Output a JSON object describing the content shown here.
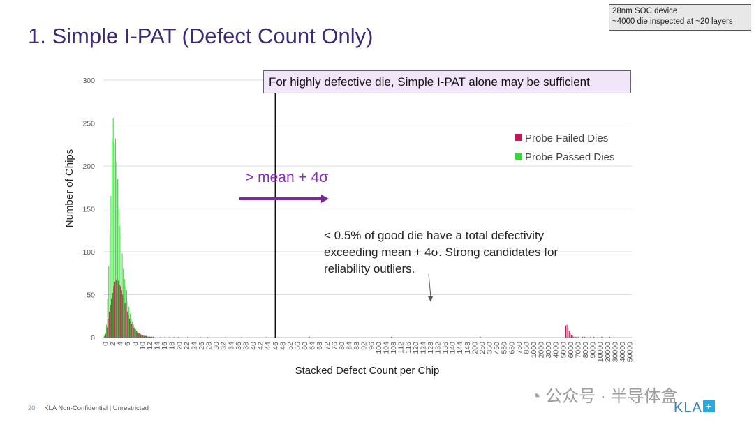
{
  "page": {
    "title": "1. Simple I-PAT (Defect Count Only)",
    "info_lines": [
      "28nm SOC device",
      "~4000 die inspected at ~20 layers"
    ],
    "callout": "For highly defective die, Simple I-PAT alone may be sufficient",
    "sigma_label": "> mean + 4σ",
    "note": "< 0.5% of good die have a total defectivity exceeding mean + 4σ. Strong candidates for reliability outliers.",
    "page_number": "20",
    "footer": "KLA Non-Confidential | Unrestricted",
    "watermark": "公众号 · 半导体盒",
    "logo_text": "KLA",
    "logo_symbol": "+"
  },
  "colors": {
    "title": "#3d2a73",
    "failed": "#c0185a",
    "passed": "#39d33a",
    "arrow": "#7a2a96",
    "grid": "#dcdcdc"
  },
  "chart_data": {
    "type": "bar",
    "xlabel": "Stacked Defect Count per Chip",
    "ylabel": "Number of Chips",
    "ylim": [
      0,
      300
    ],
    "yticks": [
      0,
      50,
      100,
      150,
      200,
      250,
      300
    ],
    "grid": true,
    "legend_position": "right",
    "threshold_label_category": "46",
    "x_tick_labels": [
      "0",
      "2",
      "4",
      "6",
      "8",
      "10",
      "12",
      "14",
      "16",
      "18",
      "20",
      "22",
      "24",
      "26",
      "28",
      "30",
      "32",
      "34",
      "36",
      "38",
      "40",
      "42",
      "44",
      "46",
      "48",
      "52",
      "56",
      "60",
      "64",
      "68",
      "72",
      "76",
      "80",
      "84",
      "88",
      "92",
      "96",
      "100",
      "104",
      "108",
      "112",
      "116",
      "120",
      "124",
      "128",
      "132",
      "136",
      "140",
      "144",
      "148",
      "200",
      "250",
      "350",
      "450",
      "550",
      "650",
      "750",
      "850",
      "1000",
      "2000",
      "3000",
      "4000",
      "5000",
      "6000",
      "7000",
      "8000",
      "9000",
      "10000",
      "20000",
      "30000",
      "40000",
      "50000"
    ],
    "series": [
      {
        "name": "Probe Failed Dies",
        "values": [
          0,
          2,
          4,
          12,
          22,
          30,
          38,
          45,
          52,
          60,
          65,
          67,
          70,
          66,
          62,
          60,
          55,
          50,
          46,
          40,
          36,
          30,
          26,
          22,
          18,
          16,
          13,
          11,
          9,
          8,
          6,
          5,
          5,
          4,
          3,
          3,
          2,
          2,
          2,
          1,
          1,
          1,
          1,
          1,
          1,
          0,
          0,
          0,
          0,
          0,
          0,
          0,
          0,
          0,
          0,
          0,
          0,
          0,
          0,
          0,
          0,
          0,
          0,
          0,
          0,
          0,
          0,
          0,
          0,
          0,
          0,
          0,
          0,
          0,
          0,
          0,
          0,
          0,
          0,
          0,
          0,
          0,
          0,
          0,
          0,
          0,
          0,
          0,
          0,
          0,
          0,
          0,
          1,
          0,
          0,
          0,
          0,
          0,
          0,
          0,
          0,
          0,
          0,
          0,
          0,
          0,
          0,
          0,
          0,
          0,
          0,
          0,
          0,
          0,
          0,
          0,
          0,
          0,
          0,
          0,
          0,
          0,
          0,
          0,
          0,
          0,
          0,
          0,
          0,
          0,
          0,
          0,
          0,
          0,
          0,
          0,
          0,
          0,
          0,
          0,
          0,
          0,
          0,
          0,
          0,
          0,
          0,
          0,
          0,
          0,
          0,
          0,
          0,
          0,
          0,
          0,
          0,
          0,
          0,
          0,
          0,
          0,
          0,
          0,
          0,
          0,
          0,
          0,
          0,
          0,
          0,
          0,
          0,
          0,
          0,
          0,
          0,
          0,
          0,
          0,
          0,
          0,
          0,
          1,
          0,
          0,
          0,
          0,
          0,
          0,
          0,
          0,
          0,
          0,
          0,
          0,
          0,
          0,
          0,
          0,
          0,
          0,
          0,
          0,
          0,
          0,
          0,
          0,
          0,
          0,
          0,
          0,
          0,
          0,
          0,
          0,
          0,
          0,
          0,
          0,
          0,
          0,
          0,
          0,
          0,
          0,
          0,
          0,
          0,
          0,
          0,
          0,
          0,
          0,
          0,
          0,
          0,
          0,
          0,
          0,
          0,
          0,
          0,
          0,
          0,
          0,
          0,
          0,
          0,
          0,
          0,
          0,
          0,
          0,
          0,
          0,
          1,
          0,
          0,
          0,
          0,
          0,
          0,
          0,
          0,
          0,
          0,
          0,
          0,
          0,
          0,
          0,
          0,
          0,
          0,
          0,
          0,
          0,
          0,
          0,
          0,
          0,
          0,
          0,
          0,
          0,
          0,
          0,
          0,
          0,
          0,
          0,
          0,
          0,
          0,
          0,
          0,
          0,
          0,
          0,
          0,
          0,
          0,
          0,
          0,
          0,
          0,
          0,
          0,
          0,
          0,
          0,
          0,
          0,
          0,
          0,
          0,
          0,
          0,
          0,
          0,
          0,
          0,
          0,
          0,
          0,
          0,
          0,
          0,
          0,
          0,
          0,
          0,
          0,
          0,
          1,
          0,
          0,
          0,
          0,
          0,
          0,
          0,
          0,
          0,
          0,
          0,
          0,
          0,
          0,
          0,
          0,
          0,
          0,
          0,
          0,
          0,
          0,
          0,
          0,
          0,
          0,
          0,
          0,
          0,
          0,
          0,
          0,
          0,
          0,
          0,
          0,
          0,
          0,
          0,
          0,
          0,
          0,
          0,
          0,
          0,
          0,
          0,
          0,
          0,
          0,
          0,
          0,
          0,
          0,
          0,
          0,
          0,
          0,
          0,
          0,
          0,
          0,
          0,
          0,
          0,
          0,
          0,
          0,
          0,
          0,
          0,
          0,
          0,
          0,
          0,
          14,
          15,
          12,
          8,
          5,
          3,
          2,
          1,
          1,
          1,
          0,
          1,
          0,
          0,
          0,
          1,
          0,
          1,
          0,
          0,
          0,
          0,
          1,
          0,
          0,
          1,
          0,
          0,
          0,
          0,
          0,
          0,
          1,
          0,
          0,
          0,
          0,
          0,
          0,
          1,
          0,
          0,
          0,
          0,
          0,
          0,
          0,
          0,
          0,
          0,
          0,
          0,
          0,
          0,
          0,
          0,
          0,
          0,
          0
        ]
      },
      {
        "name": "Probe Passed Dies",
        "values": [
          2,
          5,
          15,
          45,
          83,
          122,
          165,
          232,
          256,
          225,
          232,
          205,
          185,
          150,
          130,
          115,
          98,
          80,
          68,
          60,
          55,
          42,
          36,
          28,
          22,
          18,
          15,
          12,
          10,
          8,
          6,
          5,
          4,
          3,
          3,
          2,
          2,
          2,
          1,
          1,
          1,
          1,
          1,
          0,
          0,
          0,
          0,
          0,
          0,
          0,
          1,
          0,
          0,
          0,
          1,
          0,
          0,
          0,
          1,
          0,
          0,
          0,
          1,
          0,
          0,
          0,
          1,
          0,
          0,
          0,
          0,
          0,
          0,
          0,
          1,
          0,
          0,
          0,
          0,
          0,
          0,
          0,
          0,
          0,
          0,
          0,
          1,
          0,
          0,
          0,
          0,
          0,
          0,
          0,
          0,
          0,
          0,
          0,
          0,
          0,
          0,
          0,
          0,
          0,
          0,
          0,
          0,
          0,
          1,
          0,
          0,
          0,
          0,
          0,
          0,
          0,
          0,
          0,
          0,
          0,
          0,
          0,
          1,
          0,
          0,
          0,
          0,
          0,
          0,
          0,
          0,
          0,
          0,
          0,
          0,
          0,
          0,
          0,
          0,
          0,
          0,
          0,
          0,
          0,
          1,
          0,
          0,
          0,
          0,
          0,
          0,
          0,
          0,
          0,
          0,
          0,
          0,
          0,
          0,
          0,
          0,
          0,
          0,
          0,
          0,
          0,
          0,
          0,
          0,
          0,
          0,
          0,
          0,
          0,
          0,
          0,
          0,
          0,
          0,
          0,
          0,
          0,
          0,
          0,
          0,
          0,
          0,
          0,
          0,
          0,
          0,
          0,
          0,
          0,
          0,
          0,
          0,
          0,
          0,
          0,
          0,
          0,
          0,
          0,
          0,
          0,
          0,
          0,
          0,
          0,
          0,
          0,
          0,
          0,
          0,
          0,
          0,
          0,
          0,
          0,
          0,
          0,
          0,
          0,
          0,
          0,
          0,
          0,
          0,
          0,
          0,
          0,
          0,
          0,
          0,
          0,
          0,
          0,
          0,
          0,
          0,
          0,
          0,
          0,
          0,
          0,
          0,
          0,
          0,
          0,
          0,
          0,
          0,
          0,
          0,
          0,
          0,
          0,
          0,
          0,
          0,
          0,
          0,
          0,
          0,
          0,
          0,
          0,
          0,
          0,
          0,
          0,
          0,
          0,
          0,
          0,
          0,
          0,
          0,
          0,
          0,
          0,
          0,
          0,
          0,
          0,
          0,
          0,
          0,
          0,
          0,
          0,
          0,
          0,
          0,
          0,
          0,
          0,
          0,
          0,
          0,
          0,
          0,
          0,
          0,
          0,
          0,
          0,
          0,
          0,
          0,
          0,
          0,
          0,
          0,
          0,
          0,
          0,
          0,
          0,
          0,
          0,
          0,
          0,
          0,
          0,
          0,
          0,
          0,
          0,
          0,
          0,
          0,
          0,
          0,
          0,
          0,
          0,
          0,
          0,
          0,
          0,
          0,
          0,
          0,
          0,
          0,
          0,
          0,
          0,
          0,
          0,
          0,
          0,
          0,
          0,
          0,
          0,
          0,
          0,
          0,
          0,
          0,
          0,
          0,
          0,
          0,
          0,
          0,
          0,
          0,
          0,
          0,
          0,
          0,
          0,
          0,
          0,
          0,
          0,
          0,
          0,
          0,
          0,
          0,
          0,
          0,
          0,
          0,
          0,
          0,
          0,
          0,
          0,
          0,
          0,
          0,
          0,
          0,
          0,
          0,
          0,
          0,
          0,
          0,
          0,
          0,
          0,
          0,
          0,
          0,
          0,
          0,
          0,
          0,
          0,
          0,
          0,
          0,
          0,
          0,
          0,
          0,
          0,
          0,
          0,
          0,
          0,
          0,
          0,
          0,
          0,
          0,
          0,
          0,
          0,
          0,
          0,
          0,
          0,
          0,
          0,
          0,
          0,
          0,
          0,
          0,
          0,
          0,
          0,
          0,
          0,
          0,
          0,
          0,
          0,
          0,
          0,
          0,
          0,
          0,
          0,
          0,
          0,
          0,
          0,
          0,
          0,
          0,
          0,
          0,
          0,
          0,
          0,
          0,
          0,
          0,
          0,
          0,
          0,
          0,
          0,
          0,
          0,
          0,
          0,
          0,
          0,
          0,
          0,
          0,
          0,
          0,
          0,
          0,
          0,
          0,
          0,
          0,
          0,
          0,
          0,
          0,
          0,
          0,
          0,
          0,
          0,
          0,
          0,
          0,
          0,
          0,
          0,
          0,
          0,
          0,
          0
        ]
      }
    ]
  }
}
